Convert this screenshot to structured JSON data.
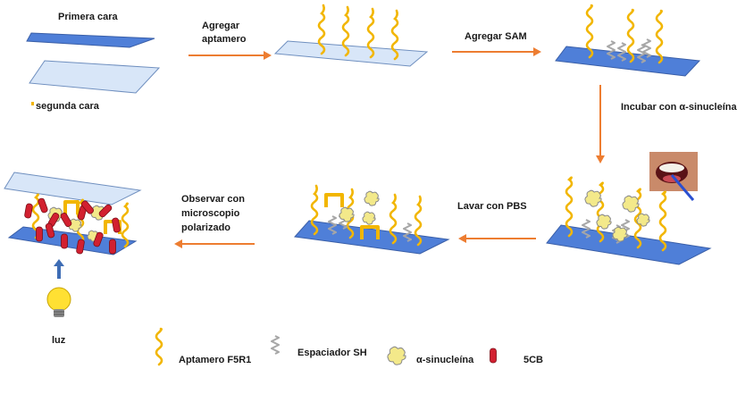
{
  "labels": {
    "primera_cara": "Primera cara",
    "segunda_cara": "segunda cara",
    "agregar_aptamero_1": "Agregar",
    "agregar_aptamero_2": "aptamero",
    "agregar_sam": "Agregar SAM",
    "incubar": "Incubar con α-sinucleína",
    "lavar": "Lavar con PBS",
    "observar_1": "Observar con",
    "observar_2": "microscopio",
    "observar_3": "polarizado",
    "luz": "luz"
  },
  "legend": {
    "aptamero": "Aptamero F5R1",
    "espaciador": "Espaciador SH",
    "sinucleina": "α-sinucleína",
    "cb5": "5CB"
  },
  "colors": {
    "slide_blue": "#4f7fd8",
    "slide_light": "#d8e6f8",
    "aptamer": "#f2b600",
    "spacer": "#a6a6a6",
    "protein": "#f3e98a",
    "lc_red": "#d22030",
    "arrow": "#ed7d31",
    "up_arrow": "#3e6db5",
    "bulb": "#ffe033"
  }
}
